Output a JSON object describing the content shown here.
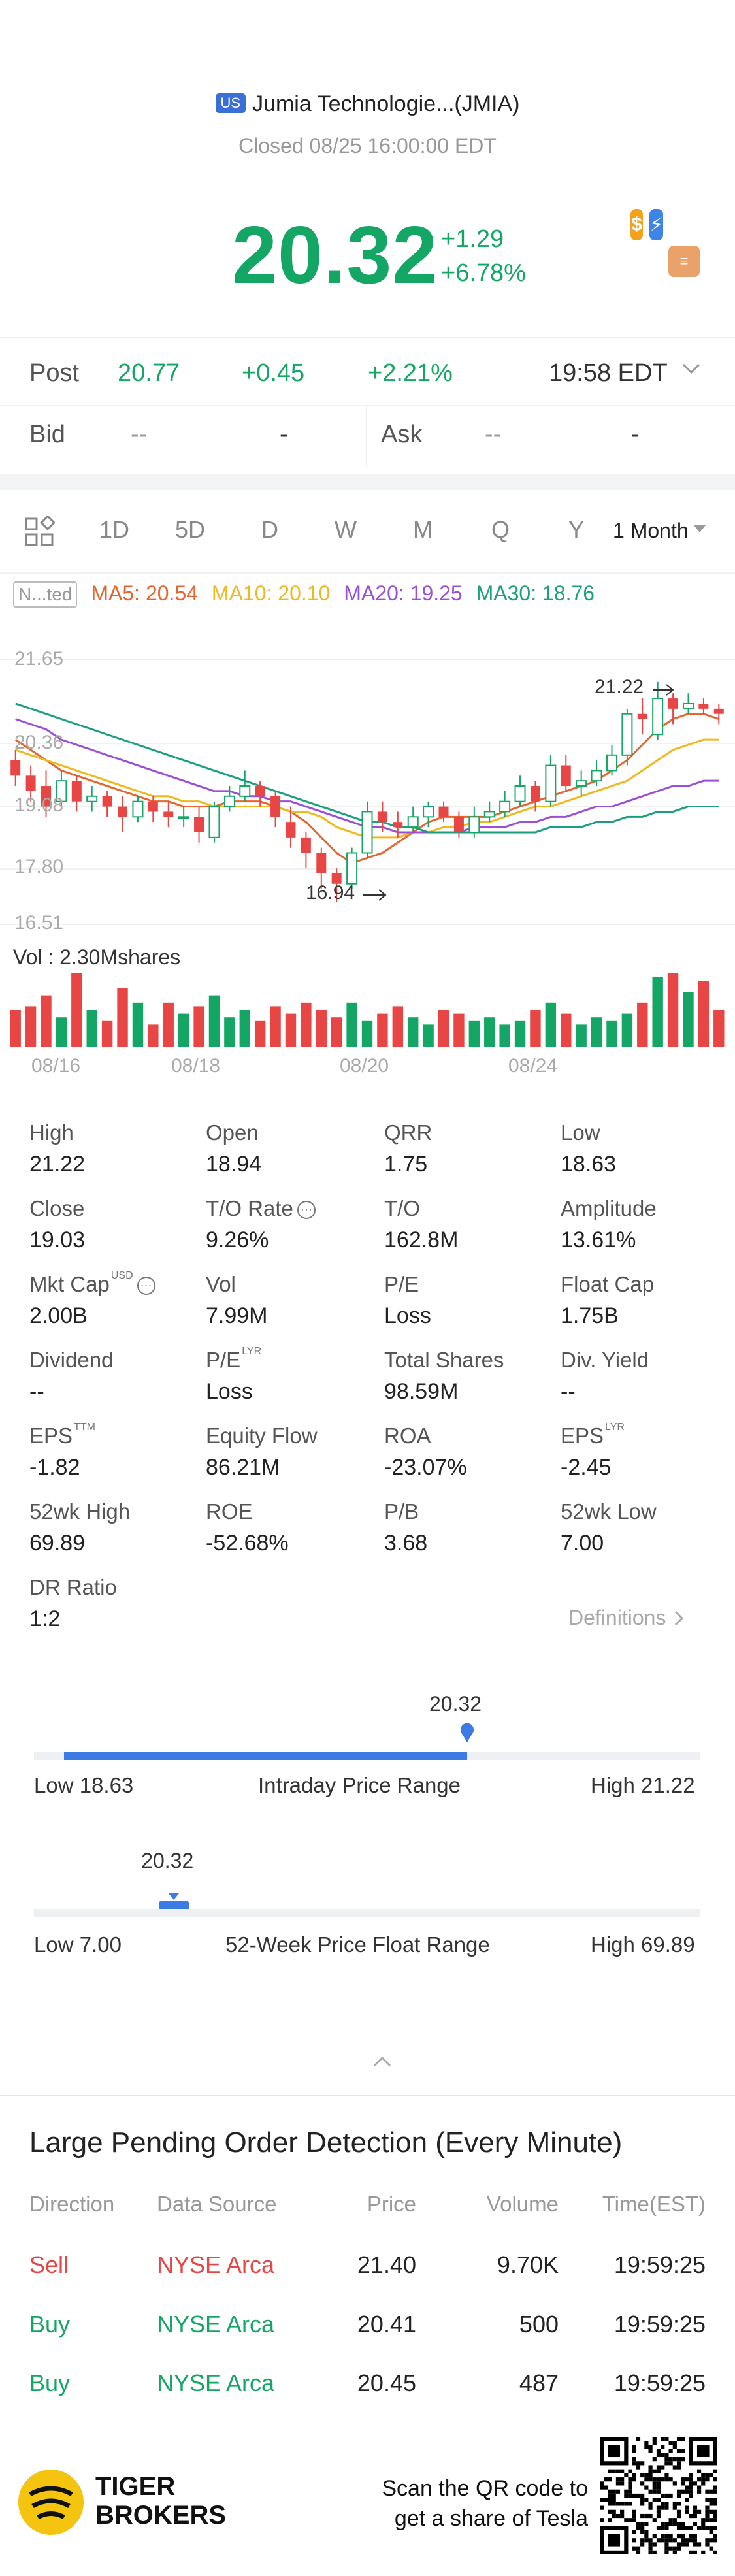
{
  "header": {
    "market_badge": "US",
    "title": "Jumia Technologie...(JMIA)",
    "status": "Closed 08/25 16:00:00 EDT",
    "price": "20.32",
    "change": "+1.29",
    "change_pct": "+6.78%"
  },
  "post": {
    "label": "Post",
    "price": "20.77",
    "change": "+0.45",
    "change_pct": "+2.21%",
    "time": "19:58 EDT"
  },
  "quote": {
    "bid_label": "Bid",
    "bid_price": "--",
    "bid_size": "-",
    "ask_label": "Ask",
    "ask_price": "--",
    "ask_size": "-"
  },
  "tabs": {
    "items": [
      "1D",
      "5D",
      "D",
      "W",
      "M",
      "Q",
      "Y"
    ],
    "period": "1 Month"
  },
  "indicators": {
    "adjust": "N...ted",
    "ma5": "MA5: 20.54",
    "ma10": "MA10: 20.10",
    "ma20": "MA20: 19.25",
    "ma30": "MA30: 18.76",
    "colors": {
      "ma5": "#e8642c",
      "ma10": "#f0b81c",
      "ma20": "#9a4fd6",
      "ma30": "#1c9e80"
    }
  },
  "chart_data": {
    "type": "candlestick",
    "y_ticks": [
      "21.65",
      "20.36",
      "19.08",
      "17.80",
      "16.51"
    ],
    "x_ticks": [
      "08/16",
      "08/18",
      "08/20",
      "08/24"
    ],
    "high_annotation": "21.22",
    "low_annotation": "16.94",
    "volume_label": "Vol  : 2.30Mshares",
    "ylim": [
      16.51,
      21.65
    ],
    "candles": [
      {
        "o": 19.7,
        "c": 19.4,
        "h": 19.9,
        "l": 19.2
      },
      {
        "o": 19.4,
        "c": 19.1,
        "h": 19.6,
        "l": 18.9
      },
      {
        "o": 19.2,
        "c": 18.8,
        "h": 19.5,
        "l": 18.6
      },
      {
        "o": 18.9,
        "c": 19.3,
        "h": 19.5,
        "l": 18.8
      },
      {
        "o": 19.3,
        "c": 18.9,
        "h": 19.4,
        "l": 18.7
      },
      {
        "o": 18.9,
        "c": 19.0,
        "h": 19.2,
        "l": 18.7
      },
      {
        "o": 19.0,
        "c": 18.8,
        "h": 19.1,
        "l": 18.6
      },
      {
        "o": 18.8,
        "c": 18.6,
        "h": 19.0,
        "l": 18.3
      },
      {
        "o": 18.6,
        "c": 18.9,
        "h": 19.0,
        "l": 18.5
      },
      {
        "o": 18.9,
        "c": 18.7,
        "h": 19.0,
        "l": 18.5
      },
      {
        "o": 18.7,
        "c": 18.6,
        "h": 18.9,
        "l": 18.4
      },
      {
        "o": 18.6,
        "c": 18.6,
        "h": 18.8,
        "l": 18.4
      },
      {
        "o": 18.6,
        "c": 18.3,
        "h": 18.8,
        "l": 18.1
      },
      {
        "o": 18.2,
        "c": 18.8,
        "h": 18.9,
        "l": 18.1
      },
      {
        "o": 18.8,
        "c": 19.0,
        "h": 19.2,
        "l": 18.7
      },
      {
        "o": 19.0,
        "c": 19.2,
        "h": 19.5,
        "l": 18.9
      },
      {
        "o": 19.2,
        "c": 19.0,
        "h": 19.3,
        "l": 18.8
      },
      {
        "o": 19.0,
        "c": 18.6,
        "h": 19.1,
        "l": 18.4
      },
      {
        "o": 18.5,
        "c": 18.2,
        "h": 18.8,
        "l": 18.0
      },
      {
        "o": 18.2,
        "c": 17.9,
        "h": 18.3,
        "l": 17.6
      },
      {
        "o": 17.9,
        "c": 17.5,
        "h": 18.0,
        "l": 17.2
      },
      {
        "o": 17.5,
        "c": 17.3,
        "h": 17.6,
        "l": 16.94
      },
      {
        "o": 17.3,
        "c": 17.9,
        "h": 18.0,
        "l": 17.2
      },
      {
        "o": 17.9,
        "c": 18.7,
        "h": 18.9,
        "l": 17.8
      },
      {
        "o": 18.7,
        "c": 18.5,
        "h": 18.9,
        "l": 18.3
      },
      {
        "o": 18.5,
        "c": 18.4,
        "h": 18.7,
        "l": 18.2
      },
      {
        "o": 18.4,
        "c": 18.6,
        "h": 18.8,
        "l": 18.3
      },
      {
        "o": 18.6,
        "c": 18.8,
        "h": 18.9,
        "l": 18.4
      },
      {
        "o": 18.8,
        "c": 18.6,
        "h": 18.9,
        "l": 18.5
      },
      {
        "o": 18.6,
        "c": 18.3,
        "h": 18.7,
        "l": 18.2
      },
      {
        "o": 18.3,
        "c": 18.6,
        "h": 18.8,
        "l": 18.2
      },
      {
        "o": 18.6,
        "c": 18.7,
        "h": 18.9,
        "l": 18.5
      },
      {
        "o": 18.7,
        "c": 18.9,
        "h": 19.1,
        "l": 18.6
      },
      {
        "o": 18.9,
        "c": 19.2,
        "h": 19.4,
        "l": 18.8
      },
      {
        "o": 19.2,
        "c": 18.9,
        "h": 19.3,
        "l": 18.7
      },
      {
        "o": 18.9,
        "c": 19.6,
        "h": 19.8,
        "l": 18.8
      },
      {
        "o": 19.6,
        "c": 19.2,
        "h": 19.8,
        "l": 19.1
      },
      {
        "o": 19.2,
        "c": 19.3,
        "h": 19.5,
        "l": 19.0
      },
      {
        "o": 19.3,
        "c": 19.5,
        "h": 19.7,
        "l": 19.2
      },
      {
        "o": 19.5,
        "c": 19.8,
        "h": 20.0,
        "l": 19.4
      },
      {
        "o": 19.8,
        "c": 20.6,
        "h": 20.7,
        "l": 19.6
      },
      {
        "o": 20.6,
        "c": 20.5,
        "h": 20.9,
        "l": 20.2
      },
      {
        "o": 20.2,
        "c": 20.9,
        "h": 21.22,
        "l": 20.1
      },
      {
        "o": 20.9,
        "c": 20.7,
        "h": 21.0,
        "l": 20.4
      },
      {
        "o": 20.7,
        "c": 20.8,
        "h": 21.0,
        "l": 20.6
      },
      {
        "o": 20.8,
        "c": 20.7,
        "h": 20.9,
        "l": 20.6
      },
      {
        "o": 20.7,
        "c": 20.6,
        "h": 20.8,
        "l": 20.4
      }
    ],
    "volumes": [
      0.5,
      0.55,
      0.7,
      0.4,
      1.0,
      0.5,
      0.35,
      0.8,
      0.6,
      0.3,
      0.6,
      0.45,
      0.55,
      0.7,
      0.4,
      0.5,
      0.35,
      0.55,
      0.45,
      0.6,
      0.5,
      0.4,
      0.6,
      0.35,
      0.45,
      0.55,
      0.4,
      0.3,
      0.5,
      0.45,
      0.35,
      0.4,
      0.3,
      0.35,
      0.5,
      0.6,
      0.45,
      0.3,
      0.4,
      0.35,
      0.45,
      0.6,
      0.95,
      1.0,
      0.75,
      0.9,
      0.5
    ],
    "ma_series": [
      {
        "key": "ma5",
        "values": [
          20.1,
          19.9,
          19.7,
          19.5,
          19.4,
          19.3,
          19.2,
          19.1,
          19.0,
          18.9,
          18.9,
          18.8,
          18.8,
          18.8,
          18.9,
          18.9,
          18.9,
          18.8,
          18.7,
          18.5,
          18.2,
          17.9,
          17.7,
          17.8,
          17.9,
          18.1,
          18.3,
          18.5,
          18.6,
          18.6,
          18.6,
          18.6,
          18.7,
          18.8,
          18.9,
          19.0,
          19.1,
          19.2,
          19.3,
          19.5,
          19.7,
          20.0,
          20.3,
          20.5,
          20.6,
          20.6,
          20.5
        ]
      },
      {
        "key": "ma10",
        "values": [
          19.9,
          19.8,
          19.7,
          19.6,
          19.5,
          19.4,
          19.3,
          19.2,
          19.1,
          19.0,
          19.0,
          18.9,
          18.9,
          18.8,
          18.8,
          18.8,
          18.8,
          18.8,
          18.7,
          18.7,
          18.6,
          18.4,
          18.3,
          18.2,
          18.2,
          18.2,
          18.3,
          18.3,
          18.4,
          18.4,
          18.5,
          18.5,
          18.6,
          18.7,
          18.8,
          18.8,
          18.9,
          19.0,
          19.1,
          19.2,
          19.3,
          19.5,
          19.7,
          19.9,
          20.0,
          20.1,
          20.1
        ]
      },
      {
        "key": "ma20",
        "values": [
          20.5,
          20.4,
          20.3,
          20.1,
          20.0,
          19.9,
          19.8,
          19.7,
          19.6,
          19.5,
          19.4,
          19.3,
          19.2,
          19.1,
          19.1,
          19.0,
          19.0,
          18.9,
          18.9,
          18.8,
          18.7,
          18.6,
          18.5,
          18.4,
          18.4,
          18.3,
          18.3,
          18.3,
          18.3,
          18.3,
          18.4,
          18.4,
          18.4,
          18.5,
          18.5,
          18.6,
          18.6,
          18.7,
          18.8,
          18.8,
          18.9,
          19.0,
          19.1,
          19.2,
          19.2,
          19.3,
          19.3
        ]
      },
      {
        "key": "ma30",
        "values": [
          20.8,
          20.7,
          20.6,
          20.5,
          20.4,
          20.3,
          20.2,
          20.1,
          20.0,
          19.9,
          19.8,
          19.7,
          19.6,
          19.5,
          19.4,
          19.3,
          19.2,
          19.1,
          19.0,
          18.9,
          18.8,
          18.7,
          18.6,
          18.5,
          18.5,
          18.4,
          18.4,
          18.3,
          18.3,
          18.3,
          18.3,
          18.3,
          18.3,
          18.3,
          18.3,
          18.4,
          18.4,
          18.4,
          18.5,
          18.5,
          18.6,
          18.6,
          18.7,
          18.7,
          18.8,
          18.8,
          18.8
        ]
      }
    ]
  },
  "stats": [
    {
      "k": "High",
      "v": "21.22"
    },
    {
      "k": "Open",
      "v": "18.94"
    },
    {
      "k": "QRR",
      "v": "1.75"
    },
    {
      "k": "Low",
      "v": "18.63"
    },
    {
      "k": "Close",
      "v": "19.03"
    },
    {
      "k": "T/O Rate",
      "v": "9.26%"
    },
    {
      "k": "T/O",
      "v": "162.8M"
    },
    {
      "k": "Amplitude",
      "v": "13.61%"
    },
    {
      "k": "Mkt Cap",
      "v": "2.00B"
    },
    {
      "k": "Vol",
      "v": "7.99M"
    },
    {
      "k": "P/E",
      "v": "Loss"
    },
    {
      "k": "Float Cap",
      "v": "1.75B"
    },
    {
      "k": "Dividend",
      "v": "--"
    },
    {
      "k": "P/E",
      "v": "Loss"
    },
    {
      "k": "Total Shares",
      "v": "98.59M"
    },
    {
      "k": "Div. Yield",
      "v": "--"
    },
    {
      "k": "EPS",
      "v": "-1.82"
    },
    {
      "k": "Equity Flow",
      "v": "86.21M"
    },
    {
      "k": "ROA",
      "v": "-23.07%"
    },
    {
      "k": "EPS",
      "v": "-2.45"
    },
    {
      "k": "52wk High",
      "v": "69.89"
    },
    {
      "k": "ROE",
      "v": "-52.68%"
    },
    {
      "k": "P/B",
      "v": "3.68"
    },
    {
      "k": "52wk Low",
      "v": "7.00"
    },
    {
      "k": "DR Ratio",
      "v": "1:2"
    }
  ],
  "stat_sups": {
    "mktcap": "USD",
    "pe_lyr": "LYR",
    "eps_ttm": "TTM",
    "eps_lyr": "LYR"
  },
  "definitions_label": "Definitions",
  "intraday": {
    "value": "20.32",
    "low": "Low 18.63",
    "label": "Intraday Price Range",
    "high": "High 21.22",
    "fraction": 0.65
  },
  "week52": {
    "value": "20.32",
    "low": "Low 7.00",
    "label": "52-Week Price Float Range",
    "high": "High 69.89",
    "fraction": 0.21
  },
  "large_orders": {
    "title": "Large Pending Order Detection (Every Minute)",
    "headers": [
      "Direction",
      "Data Source",
      "Price",
      "Volume",
      "Time(EST)"
    ],
    "rows": [
      {
        "direction": "Sell",
        "source": "NYSE Arca",
        "price": "21.40",
        "volume": "9.70K",
        "time": "19:59:25"
      },
      {
        "direction": "Buy",
        "source": "NYSE Arca",
        "price": "20.41",
        "volume": "500",
        "time": "19:59:25"
      },
      {
        "direction": "Buy",
        "source": "NYSE Arca",
        "price": "20.45",
        "volume": "487",
        "time": "19:59:25"
      }
    ]
  },
  "footer": {
    "brand_line1": "TIGER",
    "brand_line2": "BROKERS",
    "scan_line1": "Scan the QR code to",
    "scan_line2": "get a share of Tesla"
  }
}
